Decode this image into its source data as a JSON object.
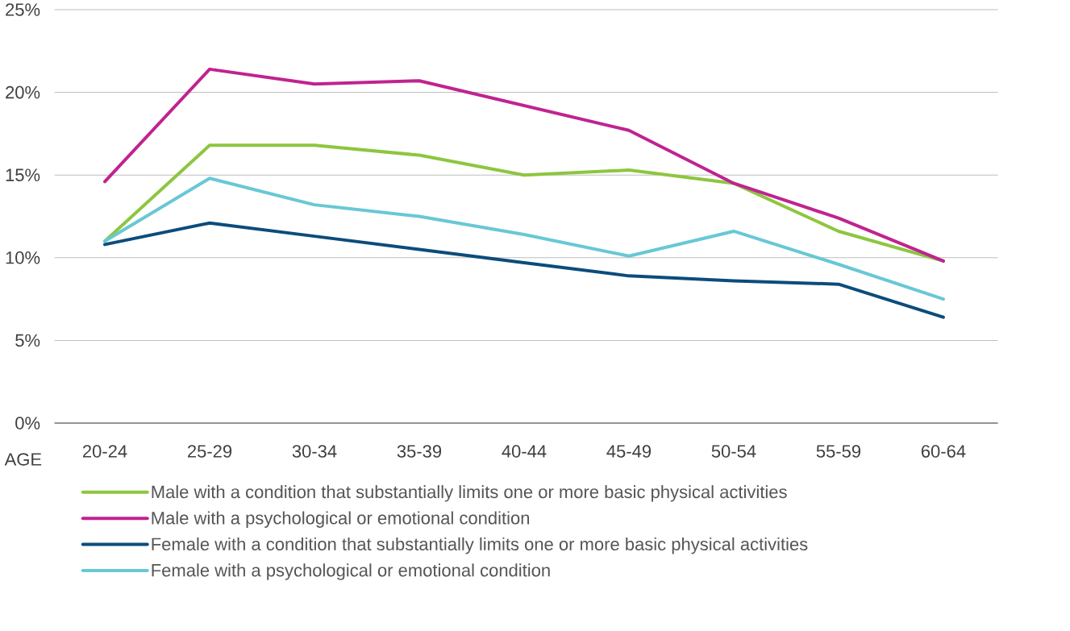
{
  "chart_data": {
    "type": "line",
    "xlabel": "AGE",
    "categories": [
      "20-24",
      "25-29",
      "30-34",
      "35-39",
      "40-44",
      "45-49",
      "50-54",
      "55-59",
      "60-64"
    ],
    "series": [
      {
        "name": "Male with a condition that substantially limits one or more basic physical activities",
        "color": "#8dc63f",
        "values": [
          11.0,
          16.8,
          16.8,
          16.2,
          15.0,
          15.3,
          14.5,
          11.6,
          9.8
        ]
      },
      {
        "name": "Male with a psychological or emotional condition",
        "color": "#c0238f",
        "values": [
          14.6,
          21.4,
          20.5,
          20.7,
          19.2,
          17.7,
          14.5,
          12.4,
          9.8
        ]
      },
      {
        "name": "Female with a condition that substantially limits one or more basic physical activities",
        "color": "#0b4c7c",
        "values": [
          10.8,
          12.1,
          11.3,
          10.5,
          9.7,
          8.9,
          8.6,
          8.4,
          6.4
        ]
      },
      {
        "name": "Female with a psychological or emotional condition",
        "color": "#68c8d4",
        "values": [
          11.0,
          14.8,
          13.2,
          12.5,
          11.4,
          10.1,
          11.6,
          9.6,
          7.5
        ]
      }
    ],
    "ylim": [
      0,
      25
    ],
    "yticks": [
      {
        "value": 0,
        "label": "0%"
      },
      {
        "value": 5,
        "label": "5%"
      },
      {
        "value": 10,
        "label": "10%"
      },
      {
        "value": 15,
        "label": "15%"
      },
      {
        "value": 20,
        "label": "20%"
      },
      {
        "value": 25,
        "label": "25%"
      }
    ],
    "grid": "y",
    "legend": "bottom",
    "marker": "none",
    "line_style": "solid"
  }
}
